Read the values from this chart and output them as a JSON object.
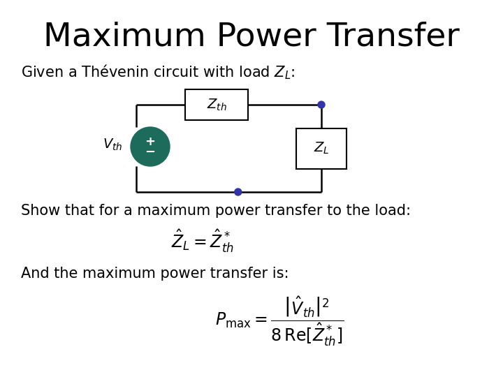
{
  "title": "Maximum Power Transfer",
  "subtitle": "Given a Thévenin circuit with load $Z_L$:",
  "show_text": "Show that for a maximum power transfer to the load:",
  "and_text": "And the maximum power transfer is:",
  "background_color": "#ffffff",
  "title_fontsize": 34,
  "body_fontsize": 15,
  "source_color": "#1d6b5a",
  "dot_color": "#3333aa",
  "wire_color": "#000000"
}
